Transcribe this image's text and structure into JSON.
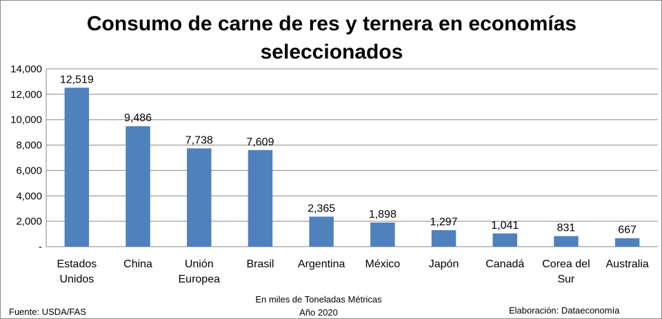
{
  "chart_data": {
    "type": "bar",
    "title_lines": [
      "Consumo de carne de res y ternera en economías",
      "seleccionados"
    ],
    "categories": [
      [
        "Estados",
        "Unidos"
      ],
      [
        "China"
      ],
      [
        "Unión",
        "Europea"
      ],
      [
        "Brasil"
      ],
      [
        "Argentina"
      ],
      [
        "México"
      ],
      [
        "Japón"
      ],
      [
        "Canadá"
      ],
      [
        "Corea del",
        "Sur"
      ],
      [
        "Australia"
      ]
    ],
    "values": [
      12519,
      9486,
      7738,
      7609,
      2365,
      1898,
      1297,
      1041,
      831,
      667
    ],
    "data_labels": [
      "12,519",
      "9,486",
      "7,738",
      "7,609",
      "2,365",
      "1,898",
      "1,297",
      "1,041",
      "831",
      "667"
    ],
    "ylim": [
      0,
      14000
    ],
    "yticks": [
      0,
      2000,
      4000,
      6000,
      8000,
      10000,
      12000,
      14000
    ],
    "ytick_labels": [
      "-",
      "2,000",
      "4,000",
      "6,000",
      "8,000",
      "10,000",
      "12,000",
      "14,000"
    ],
    "grid": true,
    "bar_color": "#4F81BD",
    "xlabel_lines": [
      "En miles de Toneladas Métricas",
      "Año 2020"
    ]
  },
  "footer": {
    "source": "Fuente: USDA/FAS",
    "credit": "Elaboración: Dataeconomía"
  }
}
